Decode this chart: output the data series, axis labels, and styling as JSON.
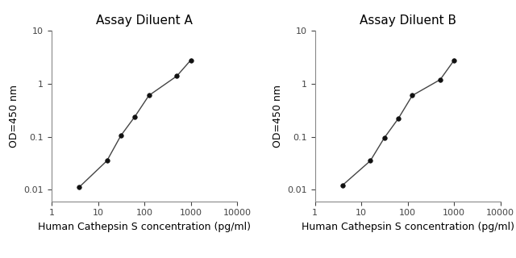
{
  "panel_A": {
    "title": "Assay Diluent A",
    "x": [
      3.9,
      15.6,
      31.2,
      62.5,
      125,
      500,
      1000
    ],
    "y": [
      0.011,
      0.035,
      0.105,
      0.24,
      0.6,
      1.4,
      2.8
    ],
    "xlabel": "Human Cathepsin S concentration (pg/ml)",
    "ylabel": "OD=450 nm",
    "xlim": [
      1,
      10000
    ],
    "ylim": [
      0.006,
      10
    ]
  },
  "panel_B": {
    "title": "Assay Diluent B",
    "x": [
      3.9,
      15.6,
      31.2,
      62.5,
      125,
      500,
      1000
    ],
    "y": [
      0.012,
      0.035,
      0.095,
      0.22,
      0.6,
      1.2,
      2.8
    ],
    "xlabel": "Human Cathepsin S concentration (pg/ml)",
    "ylabel": "OD=450 nm",
    "xlim": [
      1,
      10000
    ],
    "ylim": [
      0.006,
      10
    ]
  },
  "line_color": "#444444",
  "marker_color": "#111111",
  "marker_size": 4,
  "line_width": 1.0,
  "bg_color": "#ffffff",
  "title_fontsize": 11,
  "label_fontsize": 9,
  "tick_fontsize": 8,
  "y_ticks": [
    0.01,
    0.1,
    1,
    10
  ],
  "x_ticks": [
    1,
    10,
    100,
    1000,
    10000
  ]
}
